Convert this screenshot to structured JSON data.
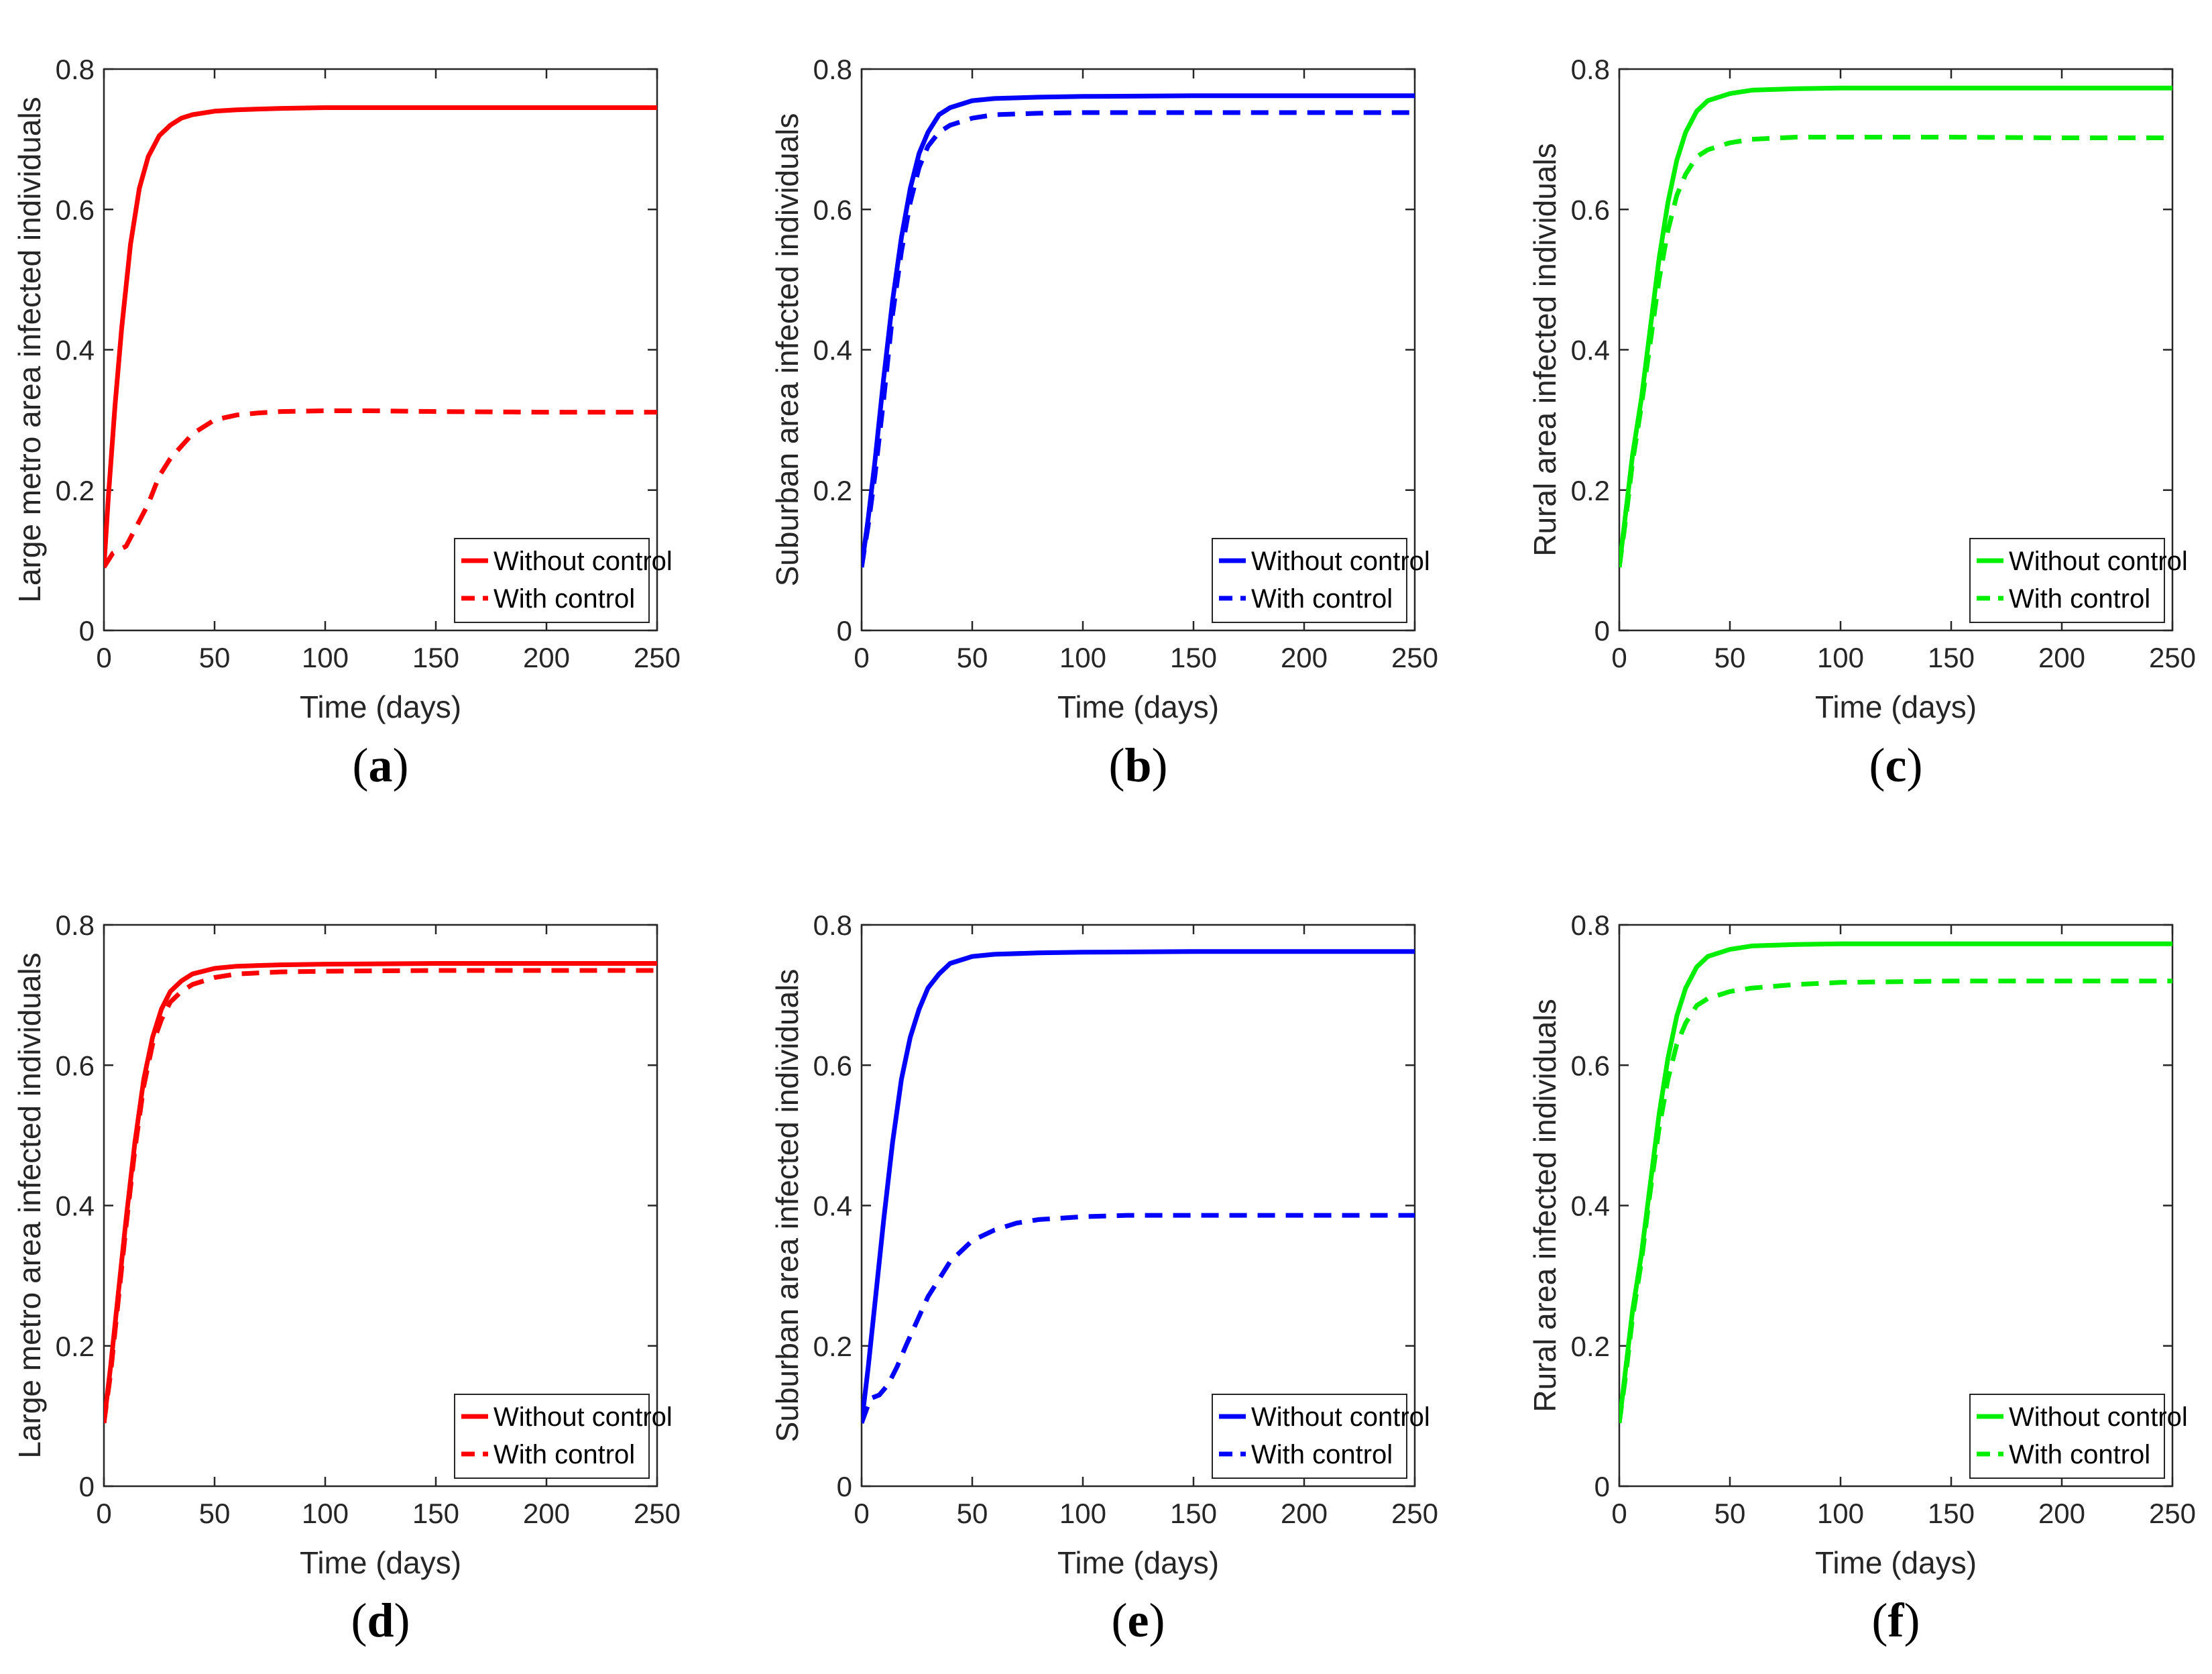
{
  "colors": {
    "red": "#ff0000",
    "blue": "#0000ff",
    "green": "#00ee00",
    "axis": "#262626"
  },
  "chart_data": [
    {
      "type": "line",
      "panel": "a",
      "color": "red",
      "xlabel": "Time (days)",
      "ylabel": "Large metro area infected individuals",
      "xlim": [
        0,
        250
      ],
      "ylim": [
        0,
        0.8
      ],
      "xticks": [
        "0",
        "50",
        "100",
        "150",
        "200",
        "250"
      ],
      "yticks": [
        "0",
        "0.2",
        "0.4",
        "0.6",
        "0.8"
      ],
      "legend": "bottom-right",
      "series": [
        {
          "name": "Without control",
          "style": "solid",
          "x": [
            0,
            2,
            5,
            8,
            12,
            16,
            20,
            25,
            30,
            35,
            40,
            50,
            60,
            80,
            100,
            150,
            200,
            250
          ],
          "y": [
            0.09,
            0.19,
            0.32,
            0.43,
            0.55,
            0.63,
            0.675,
            0.705,
            0.72,
            0.73,
            0.735,
            0.74,
            0.742,
            0.744,
            0.745,
            0.745,
            0.745,
            0.745
          ]
        },
        {
          "name": "With control",
          "style": "dashed",
          "x": [
            0,
            4,
            10,
            15,
            20,
            25,
            30,
            40,
            50,
            60,
            70,
            80,
            100,
            120,
            150,
            200,
            250
          ],
          "y": [
            0.09,
            0.11,
            0.12,
            0.15,
            0.18,
            0.22,
            0.245,
            0.28,
            0.3,
            0.307,
            0.31,
            0.312,
            0.313,
            0.313,
            0.312,
            0.311,
            0.311
          ]
        }
      ]
    },
    {
      "type": "line",
      "panel": "b",
      "color": "blue",
      "xlabel": "Time (days)",
      "ylabel": "Suburban area infected individuals",
      "xlim": [
        0,
        250
      ],
      "ylim": [
        0,
        0.8
      ],
      "xticks": [
        "0",
        "50",
        "100",
        "150",
        "200",
        "250"
      ],
      "yticks": [
        "0",
        "0.2",
        "0.4",
        "0.6",
        "0.8"
      ],
      "legend": "bottom-right",
      "series": [
        {
          "name": "Without control",
          "style": "solid",
          "x": [
            0,
            3,
            6,
            10,
            14,
            18,
            22,
            26,
            30,
            35,
            40,
            50,
            60,
            80,
            100,
            150,
            200,
            250
          ],
          "y": [
            0.09,
            0.16,
            0.24,
            0.36,
            0.47,
            0.56,
            0.63,
            0.68,
            0.71,
            0.735,
            0.745,
            0.755,
            0.758,
            0.76,
            0.761,
            0.762,
            0.762,
            0.762
          ]
        },
        {
          "name": "With control",
          "style": "dashed",
          "x": [
            0,
            3,
            6,
            10,
            14,
            18,
            22,
            26,
            30,
            35,
            40,
            50,
            60,
            80,
            100,
            150,
            200,
            250
          ],
          "y": [
            0.09,
            0.15,
            0.22,
            0.33,
            0.45,
            0.54,
            0.61,
            0.66,
            0.69,
            0.71,
            0.72,
            0.73,
            0.735,
            0.737,
            0.738,
            0.738,
            0.738,
            0.738
          ]
        }
      ]
    },
    {
      "type": "line",
      "panel": "c",
      "color": "green",
      "xlabel": "Time (days)",
      "ylabel": "Rural area infected individuals",
      "xlim": [
        0,
        250
      ],
      "ylim": [
        0,
        0.8
      ],
      "xticks": [
        "0",
        "50",
        "100",
        "150",
        "200",
        "250"
      ],
      "yticks": [
        "0",
        "0.2",
        "0.4",
        "0.6",
        "0.8"
      ],
      "legend": "bottom-right",
      "series": [
        {
          "name": "Without control",
          "style": "solid",
          "x": [
            0,
            3,
            6,
            10,
            14,
            18,
            22,
            26,
            30,
            35,
            40,
            50,
            60,
            80,
            100,
            150,
            200,
            250
          ],
          "y": [
            0.09,
            0.17,
            0.25,
            0.33,
            0.43,
            0.53,
            0.61,
            0.67,
            0.71,
            0.74,
            0.755,
            0.765,
            0.77,
            0.772,
            0.773,
            0.773,
            0.773,
            0.773
          ]
        },
        {
          "name": "With control",
          "style": "dashed",
          "x": [
            0,
            3,
            6,
            10,
            14,
            18,
            22,
            26,
            30,
            35,
            40,
            50,
            60,
            80,
            100,
            150,
            200,
            250
          ],
          "y": [
            0.09,
            0.16,
            0.24,
            0.32,
            0.41,
            0.5,
            0.57,
            0.62,
            0.65,
            0.675,
            0.685,
            0.695,
            0.7,
            0.703,
            0.703,
            0.703,
            0.702,
            0.702
          ]
        }
      ]
    },
    {
      "type": "line",
      "panel": "d",
      "color": "red",
      "xlabel": "Time (days)",
      "ylabel": "Large metro area infected individuals",
      "xlim": [
        0,
        250
      ],
      "ylim": [
        0,
        0.8
      ],
      "xticks": [
        "0",
        "50",
        "100",
        "150",
        "200",
        "250"
      ],
      "yticks": [
        "0",
        "0.2",
        "0.4",
        "0.6",
        "0.8"
      ],
      "legend": "bottom-right",
      "series": [
        {
          "name": "Without control",
          "style": "solid",
          "x": [
            0,
            3,
            6,
            10,
            14,
            18,
            22,
            26,
            30,
            35,
            40,
            50,
            60,
            80,
            100,
            150,
            200,
            250
          ],
          "y": [
            0.09,
            0.17,
            0.26,
            0.38,
            0.49,
            0.58,
            0.64,
            0.68,
            0.705,
            0.72,
            0.73,
            0.738,
            0.741,
            0.743,
            0.744,
            0.745,
            0.745,
            0.745
          ]
        },
        {
          "name": "With control",
          "style": "dashed",
          "x": [
            0,
            3,
            6,
            10,
            14,
            18,
            22,
            26,
            30,
            35,
            40,
            50,
            60,
            80,
            100,
            150,
            200,
            250
          ],
          "y": [
            0.09,
            0.16,
            0.25,
            0.37,
            0.48,
            0.57,
            0.63,
            0.665,
            0.69,
            0.705,
            0.715,
            0.725,
            0.73,
            0.733,
            0.734,
            0.735,
            0.735,
            0.735
          ]
        }
      ]
    },
    {
      "type": "line",
      "panel": "e",
      "color": "blue",
      "xlabel": "Time (days)",
      "ylabel": "Suburban area infected individuals",
      "xlim": [
        0,
        250
      ],
      "ylim": [
        0,
        0.8
      ],
      "xticks": [
        "0",
        "50",
        "100",
        "150",
        "200",
        "250"
      ],
      "yticks": [
        "0",
        "0.2",
        "0.4",
        "0.6",
        "0.8"
      ],
      "legend": "bottom-right",
      "series": [
        {
          "name": "Without control",
          "style": "solid",
          "x": [
            0,
            3,
            6,
            10,
            14,
            18,
            22,
            26,
            30,
            35,
            40,
            50,
            60,
            80,
            100,
            150,
            200,
            250
          ],
          "y": [
            0.09,
            0.17,
            0.26,
            0.38,
            0.49,
            0.58,
            0.64,
            0.68,
            0.71,
            0.73,
            0.745,
            0.755,
            0.758,
            0.76,
            0.761,
            0.762,
            0.762,
            0.762
          ]
        },
        {
          "name": "With control",
          "style": "dashed",
          "x": [
            0,
            4,
            8,
            12,
            16,
            20,
            25,
            30,
            40,
            50,
            60,
            70,
            80,
            100,
            120,
            150,
            200,
            250
          ],
          "y": [
            0.09,
            0.125,
            0.13,
            0.145,
            0.17,
            0.2,
            0.235,
            0.27,
            0.32,
            0.35,
            0.365,
            0.375,
            0.38,
            0.384,
            0.386,
            0.386,
            0.386,
            0.386
          ]
        }
      ]
    },
    {
      "type": "line",
      "panel": "f",
      "color": "green",
      "xlabel": "Time (days)",
      "ylabel": "Rural area infected individuals",
      "xlim": [
        0,
        250
      ],
      "ylim": [
        0,
        0.8
      ],
      "xticks": [
        "0",
        "50",
        "100",
        "150",
        "200",
        "250"
      ],
      "yticks": [
        "0",
        "0.2",
        "0.4",
        "0.6",
        "0.8"
      ],
      "legend": "bottom-right",
      "series": [
        {
          "name": "Without control",
          "style": "solid",
          "x": [
            0,
            3,
            6,
            10,
            14,
            18,
            22,
            26,
            30,
            35,
            40,
            50,
            60,
            80,
            100,
            150,
            200,
            250
          ],
          "y": [
            0.09,
            0.17,
            0.25,
            0.33,
            0.43,
            0.53,
            0.61,
            0.67,
            0.71,
            0.74,
            0.755,
            0.765,
            0.77,
            0.772,
            0.773,
            0.773,
            0.773,
            0.773
          ]
        },
        {
          "name": "With control",
          "style": "dashed",
          "x": [
            0,
            3,
            6,
            10,
            14,
            18,
            22,
            26,
            30,
            35,
            40,
            50,
            60,
            80,
            100,
            150,
            200,
            250
          ],
          "y": [
            0.09,
            0.16,
            0.24,
            0.32,
            0.42,
            0.51,
            0.58,
            0.63,
            0.66,
            0.685,
            0.695,
            0.705,
            0.71,
            0.715,
            0.718,
            0.72,
            0.72,
            0.72
          ]
        }
      ]
    }
  ],
  "captions": [
    {
      "open": "(",
      "letter": "a",
      "close": ")"
    },
    {
      "open": "(",
      "letter": "b",
      "close": ")"
    },
    {
      "open": "(",
      "letter": "c",
      "close": ")"
    },
    {
      "open": "(",
      "letter": "d",
      "close": ")"
    },
    {
      "open": "(",
      "letter": "e",
      "close": ")"
    },
    {
      "open": "(",
      "letter": "f",
      "close": ")"
    }
  ]
}
